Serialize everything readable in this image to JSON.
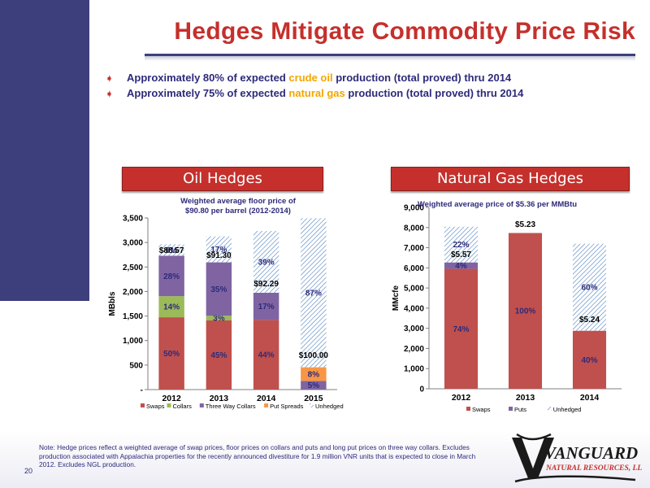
{
  "title": "Hedges Mitigate Commodity Price Risk",
  "bullets": [
    {
      "pre": "Approximately 80% of expected ",
      "hl": "crude oil",
      "post": " production (total proved) thru 2014"
    },
    {
      "pre": "Approximately 75% of expected ",
      "hl": "natural gas",
      "post": " production (total proved) thru 2014"
    }
  ],
  "oil_heading": "Oil Hedges",
  "gas_heading": "Natural Gas Hedges",
  "note": "Note: Hedge prices reflect a weighted  average of swap prices, floor prices on collars and puts and long put prices on three way collars. Excludes production associated with Appalachia properties for the recently announced divestiture for 1.9 million VNR units that is expected to close in March 2012. Excludes NGL production.",
  "page_number": "20",
  "logo": {
    "name": "VANGUARD",
    "sub": "NATURAL RESOURCES, LLC"
  },
  "colors": {
    "swaps": "#c0504d",
    "collars": "#9bbb59",
    "three_way": "#8064a2",
    "put_spreads": "#f79646",
    "unhedged_pattern": "#4f81bd",
    "brand_red": "#c5302c",
    "brand_navy": "#3d3f7d"
  },
  "chart_data": [
    {
      "type": "bar",
      "stacked": true,
      "subtitle": "Weighted average floor price of\n$90.80 per barrel (2012-2014)",
      "ylabel": "MBbls",
      "categories": [
        "2012",
        "2013",
        "2014",
        "2015"
      ],
      "ylim": [
        0,
        3500
      ],
      "yticks": [
        "-",
        "500",
        "1,000",
        "1,500",
        "2,000",
        "2,500",
        "3,000",
        "3,500"
      ],
      "series": [
        {
          "name": "Swaps",
          "values": [
            1475,
            1410,
            1420,
            0
          ],
          "labels": [
            "50%",
            "45%",
            "44%",
            ""
          ]
        },
        {
          "name": "Collars",
          "values": [
            430,
            95,
            0,
            0
          ],
          "labels": [
            "14%",
            "3%",
            "",
            ""
          ]
        },
        {
          "name": "Three Way Collars",
          "values": [
            825,
            1090,
            555,
            175
          ],
          "labels": [
            "28%",
            "35%",
            "17%",
            "5%"
          ]
        },
        {
          "name": "Put Spreads",
          "values": [
            0,
            0,
            0,
            280
          ],
          "labels": [
            "",
            "",
            "",
            "8%"
          ]
        },
        {
          "name": "Unhedged",
          "values": [
            235,
            530,
            1260,
            3040
          ],
          "labels": [
            "8%",
            "17%",
            "39%",
            "87%"
          ]
        }
      ],
      "price_labels": [
        "$88.57",
        "$91.30",
        "$92.29",
        "$100.00"
      ],
      "legend": "bottom"
    },
    {
      "type": "bar",
      "stacked": true,
      "subtitle": "Weighted average price of $5.36 per MMBtu",
      "ylabel": "MMcfe",
      "categories": [
        "2012",
        "2013",
        "2014"
      ],
      "ylim": [
        0,
        9000
      ],
      "yticks": [
        "0",
        "1,000",
        "2,000",
        "3,000",
        "4,000",
        "5,000",
        "6,000",
        "7,000",
        "8,000",
        "9,000"
      ],
      "series": [
        {
          "name": "Swaps",
          "values": [
            5950,
            7730,
            2880
          ],
          "labels": [
            "74%",
            "100%",
            "40%"
          ]
        },
        {
          "name": "Puts",
          "values": [
            320,
            0,
            0
          ],
          "labels": [
            "4%",
            "",
            ""
          ]
        },
        {
          "name": "Unhedged",
          "values": [
            1770,
            0,
            4320
          ],
          "labels": [
            "22%",
            "",
            "60%"
          ]
        }
      ],
      "price_labels": [
        "$5.57",
        "$5.23",
        "$5.24"
      ],
      "legend": "bottom"
    }
  ]
}
